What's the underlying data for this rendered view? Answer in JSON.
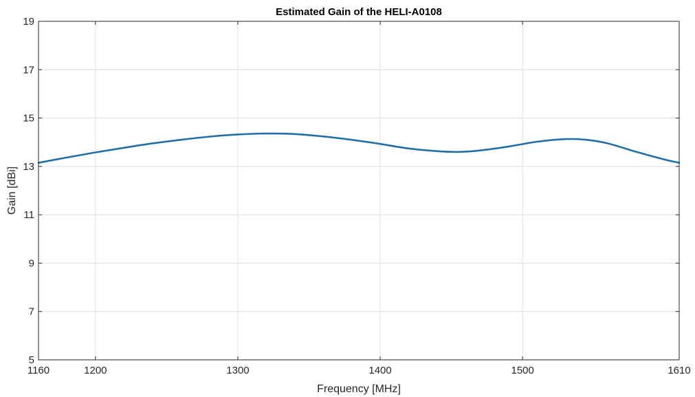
{
  "chart_data": {
    "type": "line",
    "title": "Estimated Gain of the HELI-A0108",
    "xlabel": "Frequency [MHz]",
    "ylabel": "Gain [dBi]",
    "xlim": [
      1160,
      1610
    ],
    "ylim": [
      5,
      19
    ],
    "xticks": [
      1160,
      1200,
      1300,
      1400,
      1500,
      1610
    ],
    "yticks": [
      5,
      7,
      9,
      11,
      13,
      15,
      17,
      19
    ],
    "grid": true,
    "box": true,
    "line_color": "#1f6fa8",
    "series": [
      {
        "x": [
          1160,
          1180,
          1200,
          1220,
          1240,
          1260,
          1280,
          1300,
          1320,
          1340,
          1360,
          1380,
          1400,
          1420,
          1440,
          1455,
          1470,
          1490,
          1510,
          1530,
          1545,
          1560,
          1580,
          1600,
          1610
        ],
        "values": [
          13.15,
          13.37,
          13.58,
          13.77,
          13.95,
          14.1,
          14.23,
          14.32,
          14.36,
          14.34,
          14.24,
          14.1,
          13.93,
          13.74,
          13.63,
          13.6,
          13.66,
          13.82,
          14.02,
          14.13,
          14.1,
          13.95,
          13.6,
          13.28,
          13.15
        ]
      }
    ]
  }
}
